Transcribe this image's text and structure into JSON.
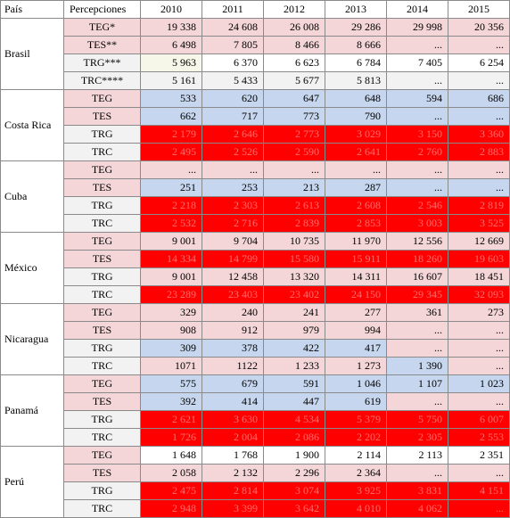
{
  "table": {
    "headers": [
      "País",
      "Percepciones",
      "2010",
      "2011",
      "2012",
      "2013",
      "2014",
      "2015"
    ],
    "groups": [
      {
        "country": "Brasil",
        "rows": [
          {
            "label": "TEG*",
            "values": [
              "19 338",
              "24 608",
              "26 008",
              "29 286",
              "29 998",
              "20 356"
            ]
          },
          {
            "label": "TES**",
            "values": [
              "6 498",
              "7 805",
              "8 466",
              "8 666",
              "...",
              "..."
            ]
          },
          {
            "label": "TRG***",
            "values": [
              "5 963",
              "6 370",
              "6 623",
              "6 784",
              "7 405",
              "6 254"
            ]
          },
          {
            "label": "TRC****",
            "values": [
              "5 161",
              "5 433",
              "5 677",
              "5 813",
              "...",
              "..."
            ]
          }
        ]
      },
      {
        "country": "Costa Rica",
        "rows": [
          {
            "label": "TEG",
            "values": [
              "533",
              "620",
              "647",
              "648",
              "594",
              "686"
            ]
          },
          {
            "label": "TES",
            "values": [
              "662",
              "717",
              "773",
              "790",
              "...",
              "..."
            ]
          },
          {
            "label": "TRG",
            "values": [
              "2 179",
              "2 646",
              "2 773",
              "3 029",
              "3 150",
              "3 360"
            ]
          },
          {
            "label": "TRC",
            "values": [
              "2 495",
              "2 526",
              "2 590",
              "2 641",
              "2 760",
              "2 883"
            ]
          }
        ]
      },
      {
        "country": "Cuba",
        "rows": [
          {
            "label": "TEG",
            "values": [
              "...",
              "...",
              "...",
              "...",
              "...",
              "..."
            ]
          },
          {
            "label": "TES",
            "values": [
              "251",
              "253",
              "213",
              "287",
              "...",
              "..."
            ]
          },
          {
            "label": "TRG",
            "values": [
              "2 218",
              "2 303",
              "2 613",
              "2 608",
              "2 546",
              "2 819"
            ]
          },
          {
            "label": "TRC",
            "values": [
              "2 532",
              "2 716",
              "2 839",
              "2 853",
              "3 003",
              "3 525"
            ]
          }
        ]
      },
      {
        "country": "México",
        "rows": [
          {
            "label": "TEG",
            "values": [
              "9 001",
              "9 704",
              "10 735",
              "11 970",
              "12 556",
              "12 669"
            ]
          },
          {
            "label": "TES",
            "values": [
              "14 334",
              "14 799",
              "15 580",
              "15 911",
              "18 260",
              "19 603"
            ]
          },
          {
            "label": "TRG",
            "values": [
              "9 001",
              "12 458",
              "13 320",
              "14 311",
              "16 607",
              "18 451"
            ]
          },
          {
            "label": "TRC",
            "values": [
              "23 289",
              "23 403",
              "23 402",
              "24 150",
              "29 345",
              "32 093"
            ]
          }
        ]
      },
      {
        "country": "Nicaragua",
        "rows": [
          {
            "label": "TEG",
            "values": [
              "329",
              "240",
              "241",
              "277",
              "361",
              "273"
            ]
          },
          {
            "label": "TES",
            "values": [
              "908",
              "912",
              "979",
              "994",
              "...",
              "..."
            ]
          },
          {
            "label": "TRG",
            "values": [
              "309",
              "378",
              "422",
              "417",
              "...",
              "..."
            ]
          },
          {
            "label": "TRC",
            "values": [
              "1071",
              "1122",
              "1 233",
              "1 273",
              "1 390",
              "..."
            ]
          }
        ]
      },
      {
        "country": "Panamá",
        "rows": [
          {
            "label": "TEG",
            "values": [
              "575",
              "679",
              "591",
              "1 046",
              "1 107",
              "1 023"
            ]
          },
          {
            "label": "TES",
            "values": [
              "392",
              "414",
              "447",
              "619",
              "...",
              "..."
            ]
          },
          {
            "label": "TRG",
            "values": [
              "2 621",
              "3 630",
              "4 534",
              "5 379",
              "5 750",
              "6 007"
            ]
          },
          {
            "label": "TRC",
            "values": [
              "1 726",
              "2 004",
              "2 086",
              "2 202",
              "2 305",
              "2 553"
            ]
          }
        ]
      },
      {
        "country": "Perú",
        "rows": [
          {
            "label": "TEG",
            "values": [
              "1 648",
              "1 768",
              "1 900",
              "2 114",
              "2 113",
              "2 351"
            ]
          },
          {
            "label": "TES",
            "values": [
              "2 058",
              "2 132",
              "2 296",
              "2 364",
              "...",
              "..."
            ]
          },
          {
            "label": "TRG",
            "values": [
              "2 475",
              "2 814",
              "3 074",
              "3 925",
              "3 831",
              "4 151"
            ]
          },
          {
            "label": "TRC",
            "values": [
              "2 948",
              "3 399",
              "3 642",
              "4 010",
              "4 062",
              "..."
            ]
          }
        ]
      }
    ]
  },
  "colors": {
    "pink": "#f4d6d8",
    "blue": "#c6d6ee",
    "red": "#ff0000",
    "red_text": "#ff6d6d",
    "gray": "#f2f2f2",
    "border": "#8a8a8a"
  }
}
